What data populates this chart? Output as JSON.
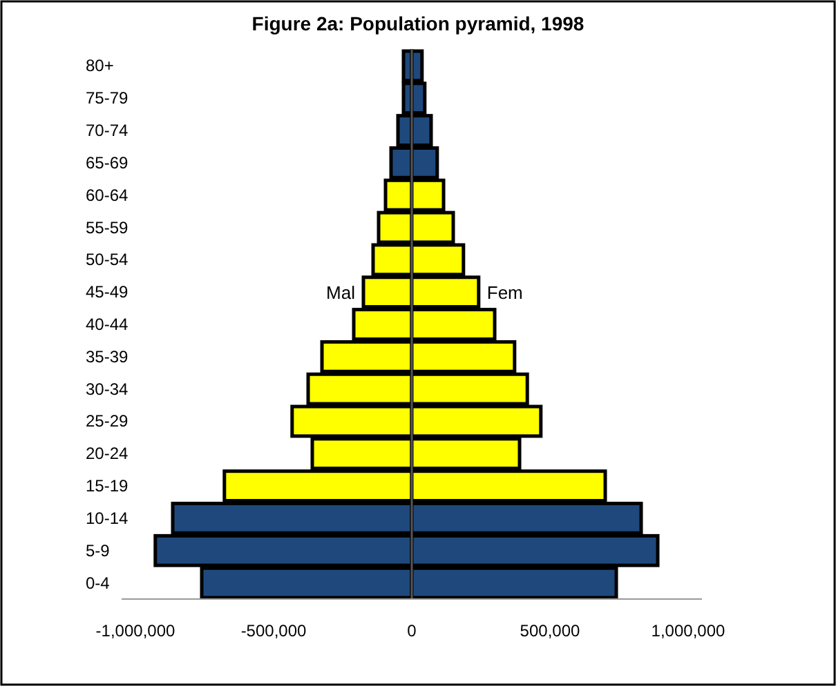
{
  "chart_data": {
    "type": "bar",
    "title": "Figure 2a: Population pyramid, 1998",
    "orientation": "horizontal",
    "stacked": true,
    "categories": [
      "80+",
      "75-79",
      "70-74",
      "65-69",
      "60-64",
      "55-59",
      "50-54",
      "45-49",
      "40-44",
      "35-39",
      "30-34",
      "25-29",
      "20-24",
      "15-19",
      "10-14",
      "5-9",
      "0-4"
    ],
    "series": [
      {
        "name": "Mal",
        "colors": [
          "#1f497d",
          "#1f497d",
          "#1f497d",
          "#1f497d",
          "#ffff00",
          "#ffff00",
          "#ffff00",
          "#ffff00",
          "#ffff00",
          "#ffff00",
          "#ffff00",
          "#ffff00",
          "#ffff00",
          "#ffff00",
          "#1f497d",
          "#1f497d",
          "#1f497d"
        ],
        "values": [
          -30000,
          -30000,
          -50000,
          -75000,
          -95000,
          -120000,
          -140000,
          -175000,
          -210000,
          -325000,
          -375000,
          -433000,
          -360000,
          -678000,
          -865000,
          -928000,
          -760000
        ]
      },
      {
        "name": "Fem",
        "colors": [
          "#1f497d",
          "#1f497d",
          "#1f497d",
          "#1f497d",
          "#ffff00",
          "#ffff00",
          "#ffff00",
          "#ffff00",
          "#ffff00",
          "#ffff00",
          "#ffff00",
          "#ffff00",
          "#ffff00",
          "#ffff00",
          "#1f497d",
          "#1f497d",
          "#1f497d"
        ],
        "values": [
          37000,
          47000,
          70000,
          92000,
          115000,
          150000,
          187000,
          242000,
          300000,
          372000,
          418000,
          467000,
          390000,
          700000,
          830000,
          890000,
          740000
        ]
      }
    ],
    "xlim": [
      -1050000,
      1050000
    ],
    "xticks": [
      {
        "value": -1000000,
        "label": "-1,000,000"
      },
      {
        "value": -500000,
        "label": "-500,000"
      },
      0,
      {
        "value": 500000,
        "label": "500,000"
      },
      {
        "value": 1000000,
        "label": "1,000,000"
      }
    ],
    "legend": false
  }
}
